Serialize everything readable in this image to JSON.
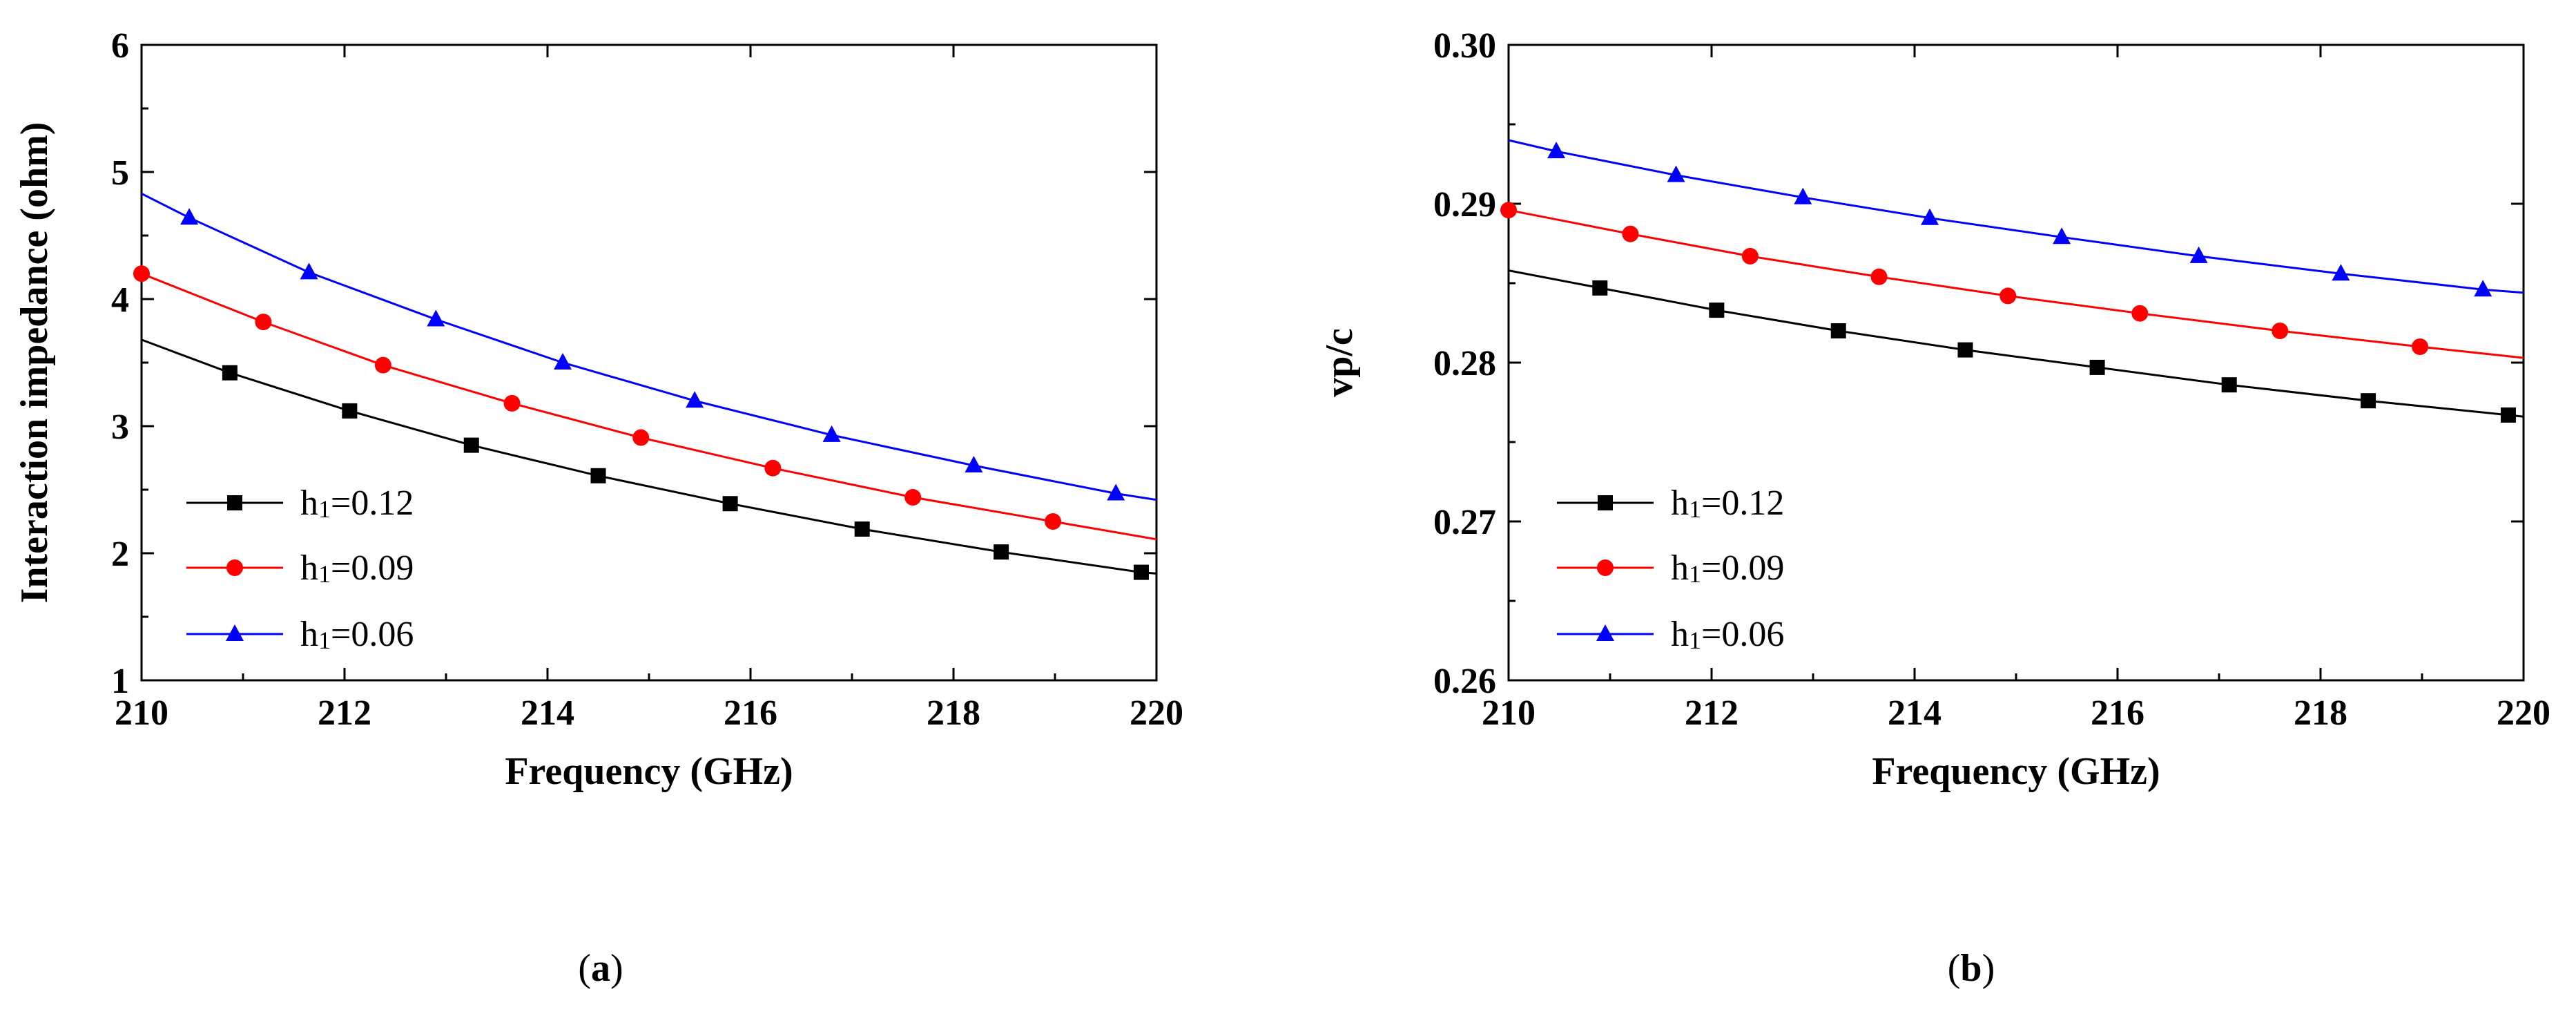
{
  "chart_data": [
    {
      "type": "line",
      "caption": "(a)",
      "xlabel": "Frequency (GHz)",
      "ylabel": "Interaction impedance (ohm)",
      "xlim": [
        210,
        220
      ],
      "ylim": [
        1,
        6
      ],
      "xticks": [
        210,
        212,
        214,
        216,
        218,
        220
      ],
      "yticks": [
        1,
        2,
        3,
        4,
        5,
        6
      ],
      "ytick_labels": [
        "1",
        "2",
        "3",
        "4",
        "5",
        "6"
      ],
      "grid": false,
      "legend_position": "bottom-left",
      "series": [
        {
          "name": "h1=0.12",
          "name_main": "h",
          "name_sub": "1",
          "name_rest": "=0.12",
          "color": "#000000",
          "marker": "square",
          "x": [
            210,
            210.87,
            212.05,
            213.25,
            214.5,
            215.8,
            217.1,
            218.47,
            219.85,
            220
          ],
          "y": [
            3.68,
            3.42,
            3.12,
            2.85,
            2.61,
            2.39,
            2.19,
            2.01,
            1.85,
            1.84
          ],
          "marker_x": [
            210.87,
            212.05,
            213.25,
            214.5,
            215.8,
            217.1,
            218.47,
            219.85
          ]
        },
        {
          "name": "h1=0.09",
          "name_main": "h",
          "name_sub": "1",
          "name_rest": "=0.09",
          "color": "#ff0000",
          "marker": "circle",
          "x": [
            210,
            211.2,
            212.38,
            213.65,
            214.92,
            216.22,
            217.6,
            218.98,
            220
          ],
          "y": [
            4.2,
            3.82,
            3.48,
            3.18,
            2.91,
            2.67,
            2.44,
            2.25,
            2.11
          ],
          "marker_x": [
            210,
            211.2,
            212.38,
            213.65,
            214.92,
            216.22,
            217.6,
            218.98
          ]
        },
        {
          "name": "h1=0.06",
          "name_main": "h",
          "name_sub": "1",
          "name_rest": "=0.06",
          "color": "#0000ff",
          "marker": "triangle",
          "x": [
            210,
            210.47,
            211.65,
            212.9,
            214.15,
            215.45,
            216.8,
            218.2,
            219.6,
            220
          ],
          "y": [
            4.83,
            4.64,
            4.21,
            3.84,
            3.5,
            3.2,
            2.93,
            2.69,
            2.47,
            2.42
          ],
          "marker_x": [
            210.47,
            211.65,
            212.9,
            214.15,
            215.45,
            216.8,
            218.2,
            219.6
          ]
        }
      ]
    },
    {
      "type": "line",
      "caption": "(b)",
      "xlabel": "Frequency (GHz)",
      "ylabel": "vp/c",
      "xlim": [
        210,
        220
      ],
      "ylim": [
        0.26,
        0.3
      ],
      "xticks": [
        210,
        212,
        214,
        216,
        218,
        220
      ],
      "yticks": [
        0.26,
        0.27,
        0.28,
        0.29,
        0.3
      ],
      "ytick_labels": [
        "0.26",
        "0.27",
        "0.28",
        "0.29",
        "0.30"
      ],
      "grid": false,
      "legend_position": "bottom-left",
      "series": [
        {
          "name": "h1=0.12",
          "name_main": "h",
          "name_sub": "1",
          "name_rest": "=0.12",
          "color": "#000000",
          "marker": "square",
          "x": [
            210,
            210.9,
            212.05,
            213.25,
            214.5,
            215.8,
            217.1,
            218.47,
            219.85,
            220
          ],
          "y": [
            0.2858,
            0.2847,
            0.2833,
            0.282,
            0.2808,
            0.2797,
            0.2786,
            0.2776,
            0.2767,
            0.2766
          ],
          "marker_x": [
            210.9,
            212.05,
            213.25,
            214.5,
            215.8,
            217.1,
            218.47,
            219.85
          ]
        },
        {
          "name": "h1=0.09",
          "name_main": "h",
          "name_sub": "1",
          "name_rest": "=0.09",
          "color": "#ff0000",
          "marker": "circle",
          "x": [
            210,
            211.2,
            212.38,
            213.65,
            214.92,
            216.22,
            217.6,
            218.98,
            220
          ],
          "y": [
            0.2896,
            0.2881,
            0.2867,
            0.2854,
            0.2842,
            0.2831,
            0.282,
            0.281,
            0.2803
          ],
          "marker_x": [
            210,
            211.2,
            212.38,
            213.65,
            214.92,
            216.22,
            217.6,
            218.98
          ]
        },
        {
          "name": "h1=0.06",
          "name_main": "h",
          "name_sub": "1",
          "name_rest": "=0.06",
          "color": "#0000ff",
          "marker": "triangle",
          "x": [
            210,
            210.47,
            211.65,
            212.9,
            214.15,
            215.45,
            216.8,
            218.2,
            219.6,
            220
          ],
          "y": [
            0.294,
            0.2933,
            0.2918,
            0.2904,
            0.2891,
            0.2879,
            0.2867,
            0.2856,
            0.2846,
            0.2844
          ],
          "marker_x": [
            210.47,
            211.65,
            212.9,
            214.15,
            215.45,
            216.8,
            218.2,
            219.6
          ]
        }
      ]
    }
  ]
}
